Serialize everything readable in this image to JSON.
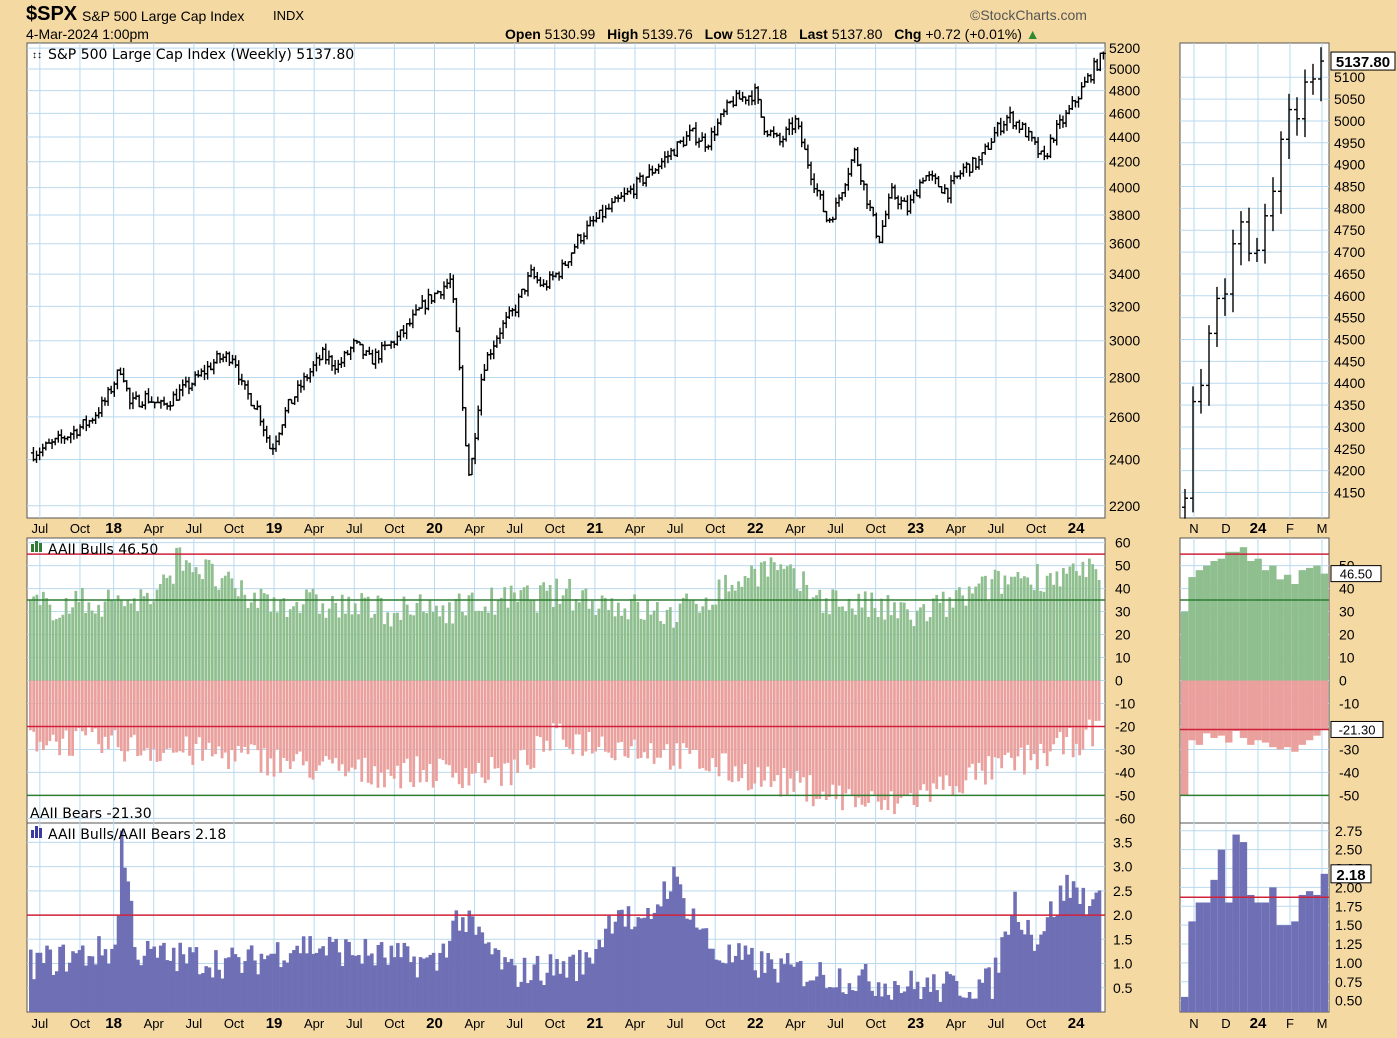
{
  "header": {
    "symbol": "$SPX",
    "name": "S&P 500 Large Cap Index",
    "exchange": "INDX",
    "date": "4-Mar-2024 1:00pm",
    "watermark": "StockCharts.com",
    "open_label": "Open",
    "open": "5130.99",
    "high_label": "High",
    "high": "5139.76",
    "low_label": "Low",
    "low": "5127.18",
    "last_label": "Last",
    "last": "5137.80",
    "chg_label": "Chg",
    "chg": "+0.72 (+0.01%)"
  },
  "colors": {
    "background": "#f5d9a3",
    "plot_bg": "#ffffff",
    "grid": "#b9d9ee",
    "price_bar": "#000000",
    "bulls_fill": "#8fbf8f",
    "bears_fill": "#eaa09c",
    "ratio_fill": "#6f6fb5",
    "red_line": "#d1203a",
    "green_line": "#2e7d32"
  },
  "chart_data": [
    {
      "id": "price",
      "type": "ohlc",
      "legend": "S&P 500 Large Cap Index (Weekly) 5137.80",
      "last_value_label": "5137.80",
      "ylim": [
        2150,
        5250
      ],
      "y_scale": "log",
      "y_ticks": [
        2200,
        2400,
        2600,
        2800,
        3000,
        3200,
        3400,
        3600,
        3800,
        4000,
        4200,
        4400,
        4600,
        4800,
        5000,
        5200
      ],
      "x_range": [
        2017.46,
        2024.18
      ],
      "x_tick_labels": [
        {
          "label": "Jul",
          "t": 2017.54,
          "bold": false
        },
        {
          "label": "Oct",
          "t": 2017.79,
          "bold": false
        },
        {
          "label": "18",
          "t": 2018.0,
          "bold": true
        },
        {
          "label": "Apr",
          "t": 2018.25,
          "bold": false
        },
        {
          "label": "Jul",
          "t": 2018.5,
          "bold": false
        },
        {
          "label": "Oct",
          "t": 2018.75,
          "bold": false
        },
        {
          "label": "19",
          "t": 2019.0,
          "bold": true
        },
        {
          "label": "Apr",
          "t": 2019.25,
          "bold": false
        },
        {
          "label": "Jul",
          "t": 2019.5,
          "bold": false
        },
        {
          "label": "Oct",
          "t": 2019.75,
          "bold": false
        },
        {
          "label": "20",
          "t": 2020.0,
          "bold": true
        },
        {
          "label": "Apr",
          "t": 2020.25,
          "bold": false
        },
        {
          "label": "Jul",
          "t": 2020.5,
          "bold": false
        },
        {
          "label": "Oct",
          "t": 2020.75,
          "bold": false
        },
        {
          "label": "21",
          "t": 2021.0,
          "bold": true
        },
        {
          "label": "Apr",
          "t": 2021.25,
          "bold": false
        },
        {
          "label": "Jul",
          "t": 2021.5,
          "bold": false
        },
        {
          "label": "Oct",
          "t": 2021.75,
          "bold": false
        },
        {
          "label": "22",
          "t": 2022.0,
          "bold": true
        },
        {
          "label": "Apr",
          "t": 2022.25,
          "bold": false
        },
        {
          "label": "Jul",
          "t": 2022.5,
          "bold": false
        },
        {
          "label": "Oct",
          "t": 2022.75,
          "bold": false
        },
        {
          "label": "23",
          "t": 2023.0,
          "bold": true
        },
        {
          "label": "Apr",
          "t": 2023.25,
          "bold": false
        },
        {
          "label": "Jul",
          "t": 2023.5,
          "bold": false
        },
        {
          "label": "Oct",
          "t": 2023.75,
          "bold": false
        },
        {
          "label": "24",
          "t": 2024.0,
          "bold": true
        }
      ],
      "closes": [
        [
          2017.5,
          2430
        ],
        [
          2017.62,
          2470
        ],
        [
          2017.75,
          2530
        ],
        [
          2017.85,
          2580
        ],
        [
          2017.95,
          2680
        ],
        [
          2018.05,
          2860
        ],
        [
          2018.1,
          2660
        ],
        [
          2018.2,
          2700
        ],
        [
          2018.3,
          2650
        ],
        [
          2018.5,
          2780
        ],
        [
          2018.65,
          2900
        ],
        [
          2018.75,
          2920
        ],
        [
          2018.8,
          2750
        ],
        [
          2018.9,
          2640
        ],
        [
          2018.98,
          2440
        ],
        [
          2019.08,
          2640
        ],
        [
          2019.2,
          2800
        ],
        [
          2019.3,
          2920
        ],
        [
          2019.4,
          2860
        ],
        [
          2019.5,
          2980
        ],
        [
          2019.6,
          2890
        ],
        [
          2019.7,
          2960
        ],
        [
          2019.8,
          3040
        ],
        [
          2019.95,
          3230
        ],
        [
          2020.1,
          3360
        ],
        [
          2020.13,
          3100
        ],
        [
          2020.18,
          2600
        ],
        [
          2020.22,
          2300
        ],
        [
          2020.3,
          2850
        ],
        [
          2020.4,
          3050
        ],
        [
          2020.5,
          3180
        ],
        [
          2020.6,
          3400
        ],
        [
          2020.68,
          3320
        ],
        [
          2020.8,
          3440
        ],
        [
          2020.9,
          3640
        ],
        [
          2021.0,
          3760
        ],
        [
          2021.2,
          3950
        ],
        [
          2021.4,
          4180
        ],
        [
          2021.6,
          4430
        ],
        [
          2021.7,
          4350
        ],
        [
          2021.85,
          4700
        ],
        [
          2022.0,
          4780
        ],
        [
          2022.05,
          4500
        ],
        [
          2022.15,
          4350
        ],
        [
          2022.25,
          4530
        ],
        [
          2022.35,
          4100
        ],
        [
          2022.45,
          3750
        ],
        [
          2022.5,
          3850
        ],
        [
          2022.62,
          4280
        ],
        [
          2022.7,
          3900
        ],
        [
          2022.77,
          3620
        ],
        [
          2022.85,
          3960
        ],
        [
          2022.95,
          3840
        ],
        [
          2023.05,
          4100
        ],
        [
          2023.2,
          3970
        ],
        [
          2023.3,
          4150
        ],
        [
          2023.4,
          4200
        ],
        [
          2023.5,
          4450
        ],
        [
          2023.58,
          4580
        ],
        [
          2023.68,
          4450
        ],
        [
          2023.8,
          4200
        ],
        [
          2023.85,
          4400
        ],
        [
          2023.95,
          4600
        ],
        [
          2024.05,
          4850
        ],
        [
          2024.12,
          5030
        ],
        [
          2024.17,
          5130
        ]
      ]
    },
    {
      "id": "price-zoom",
      "type": "ohlc",
      "last_value_label": "5137.80",
      "ylim": [
        4110,
        5160
      ],
      "y_ticks": [
        4150,
        4200,
        4250,
        4300,
        4350,
        4400,
        4450,
        4500,
        4550,
        4600,
        4650,
        4700,
        4750,
        4800,
        4850,
        4900,
        4950,
        5000,
        5050,
        5100
      ],
      "x_tick_labels": [
        {
          "label": "N",
          "bold": false
        },
        {
          "label": "D",
          "bold": false
        },
        {
          "label": "24",
          "bold": true
        },
        {
          "label": "F",
          "bold": false
        },
        {
          "label": "M",
          "bold": false
        }
      ],
      "closes": [
        4137,
        4358,
        4395,
        4514,
        4594,
        4604,
        4719,
        4769,
        4697,
        4704,
        4783,
        4839,
        4958,
        5026,
        5005,
        5089,
        5096,
        5137
      ]
    },
    {
      "id": "aaii-bulls-bears",
      "type": "bar",
      "bulls_legend": "AAII Bulls 46.50",
      "bears_legend": "AAII Bears -21.30",
      "bulls_last_label": "46.50",
      "bears_last_label": "-21.30",
      "ylim": [
        -62,
        62
      ],
      "y_ticks": [
        -60,
        -50,
        -40,
        -30,
        -20,
        -10,
        0,
        10,
        20,
        30,
        40,
        50,
        60
      ],
      "zoom_y_ticks": [
        -50,
        -40,
        -30,
        -20,
        -10,
        0,
        10,
        20,
        30,
        40,
        50
      ],
      "hlines": [
        {
          "value": 55,
          "color": "red"
        },
        {
          "value": 35,
          "color": "green"
        },
        {
          "value": -20,
          "color": "red"
        },
        {
          "value": -50,
          "color": "green"
        }
      ],
      "zoom_hlines": [
        {
          "value": 55,
          "color": "red"
        },
        {
          "value": 35,
          "color": "green"
        },
        {
          "value": -21.3,
          "color": "red"
        },
        {
          "value": -50,
          "color": "green"
        }
      ],
      "bulls_anchors": [
        [
          0,
          32
        ],
        [
          0.12,
          36
        ],
        [
          0.14,
          55
        ],
        [
          0.2,
          36
        ],
        [
          0.35,
          30
        ],
        [
          0.4,
          32
        ],
        [
          0.5,
          38
        ],
        [
          0.6,
          28
        ],
        [
          0.69,
          50
        ],
        [
          0.74,
          36
        ],
        [
          0.83,
          28
        ],
        [
          0.92,
          45
        ],
        [
          1.0,
          46.5
        ]
      ],
      "bears_anchors": [
        [
          0,
          -25
        ],
        [
          0.12,
          -30
        ],
        [
          0.2,
          -33
        ],
        [
          0.3,
          -40
        ],
        [
          0.45,
          -40
        ],
        [
          0.49,
          -25
        ],
        [
          0.58,
          -30
        ],
        [
          0.68,
          -42
        ],
        [
          0.8,
          -55
        ],
        [
          0.88,
          -42
        ],
        [
          0.95,
          -32
        ],
        [
          1.0,
          -22
        ]
      ],
      "zoom_bulls": [
        30,
        45,
        48,
        50,
        52,
        53,
        56,
        56,
        58,
        52,
        53,
        48,
        50,
        44,
        46,
        42,
        48,
        49,
        50,
        46.5
      ],
      "zoom_bears": [
        -50,
        -26,
        -28,
        -23,
        -25,
        -24,
        -27,
        -22,
        -25,
        -28,
        -26,
        -27,
        -29,
        -30,
        -29,
        -31,
        -28,
        -26,
        -24,
        -21.3
      ]
    },
    {
      "id": "bull-bear-ratio",
      "type": "area",
      "legend": "AAII Bulls/AAII Bears 2.18",
      "last_value_label": "2.18",
      "ylim": [
        0,
        3.9
      ],
      "y_ticks": [
        0.5,
        1.0,
        1.5,
        2.0,
        2.5,
        3.0,
        3.5
      ],
      "hline": 2.0,
      "zoom_ylim": [
        0.35,
        2.8
      ],
      "zoom_y_ticks": [
        0.5,
        0.75,
        1.0,
        1.25,
        1.5,
        1.75,
        2.0,
        2.25,
        2.5,
        2.75
      ],
      "zoom_hline": 1.87,
      "anchors": [
        [
          0,
          1.0
        ],
        [
          0.08,
          1.3
        ],
        [
          0.085,
          3.6
        ],
        [
          0.1,
          1.2
        ],
        [
          0.2,
          1.0
        ],
        [
          0.25,
          1.4
        ],
        [
          0.38,
          1.0
        ],
        [
          0.4,
          2.0
        ],
        [
          0.45,
          0.8
        ],
        [
          0.52,
          1.0
        ],
        [
          0.55,
          2.2
        ],
        [
          0.57,
          1.6
        ],
        [
          0.6,
          2.8
        ],
        [
          0.64,
          1.2
        ],
        [
          0.7,
          0.9
        ],
        [
          0.8,
          0.6
        ],
        [
          0.85,
          0.5
        ],
        [
          0.9,
          0.6
        ],
        [
          0.92,
          2.3
        ],
        [
          0.94,
          1.5
        ],
        [
          0.97,
          2.6
        ],
        [
          1.0,
          2.18
        ]
      ],
      "zoom_values": [
        0.55,
        1.55,
        1.8,
        1.8,
        2.1,
        2.5,
        1.8,
        2.7,
        2.6,
        1.9,
        1.8,
        1.8,
        2.0,
        1.5,
        1.5,
        1.55,
        1.9,
        1.95,
        1.9,
        2.18
      ]
    }
  ]
}
